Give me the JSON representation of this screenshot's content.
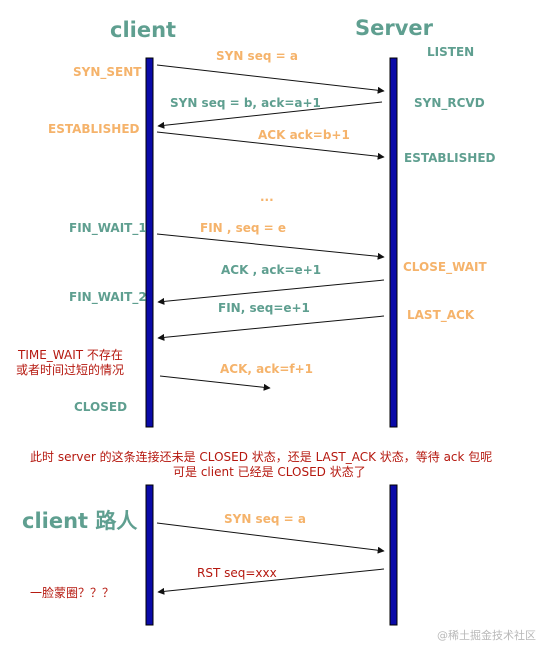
{
  "colors": {
    "lifeline": "#0a0aa8",
    "arrow": "#111111",
    "orange_text": "#f5b36b",
    "teal_text": "#5f9f90",
    "red_text": "#b5180f"
  },
  "participants": {
    "client": "client",
    "server": "Server"
  },
  "client_states": {
    "syn_sent": "SYN_SENT",
    "established": "ESTABLISHED",
    "fin_wait_1": "FIN_WAIT_1",
    "fin_wait_2": "FIN_WAIT_2",
    "time_wait_line1": "TIME_WAIT 不存在",
    "time_wait_line2": "或者时间过短的情况",
    "closed": "CLOSED"
  },
  "server_states": {
    "listen": "LISTEN",
    "syn_rcvd": "SYN_RCVD",
    "established": "ESTABLISHED",
    "close_wait": "CLOSE_WAIT",
    "last_ack": "LAST_ACK"
  },
  "messages": {
    "m1": "SYN  seq = a",
    "m2": "SYN  seq = b, ack=a+1",
    "m3": "ACK ack=b+1",
    "ellipsis": "...",
    "m4": "FIN , seq = e",
    "m5": "ACK , ack=e+1",
    "m6": "FIN, seq=e+1",
    "m7": "ACK, ack=f+1"
  },
  "note": {
    "line1": "此时 server 的这条连接还未是 CLOSED 状态，还是 LAST_ACK 状态，等待 ack 包呢",
    "line2": "可是 client 已经是  CLOSED 状态了"
  },
  "second": {
    "title": "client 路人",
    "m1": "SYN  seq = a",
    "m2": "RST  seq=xxx",
    "confused": "一脸蒙圈？？？"
  },
  "watermark": "@稀土掘金技术社区"
}
